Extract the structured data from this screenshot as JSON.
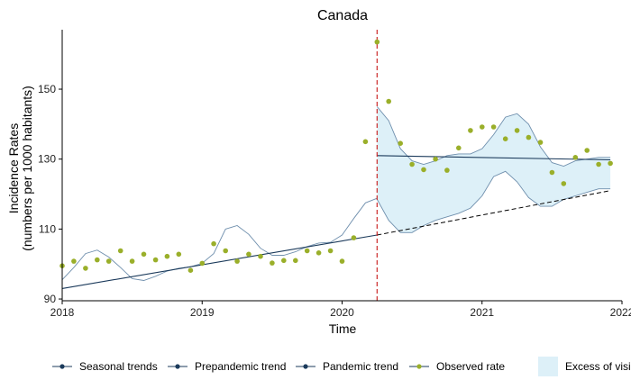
{
  "chart_data": {
    "type": "line",
    "title": "Canada",
    "xlabel": "Time",
    "ylabel": [
      "Incidence Rates",
      "(numbers per 1000 habitants)"
    ],
    "x_ticks": [
      "2018",
      "2019",
      "2020",
      "2021",
      "2022"
    ],
    "y_ticks": [
      90,
      110,
      130,
      150
    ],
    "xlim": [
      2018.0,
      2022.0
    ],
    "ylim": [
      89.5,
      167
    ],
    "grid": false,
    "legend_position": "bottom",
    "colors": {
      "observed": "#9aaf2a",
      "lines": "#1b3a5b",
      "band_fill": "#ddf0f8",
      "band_edge": "#6f8fad",
      "pandemic_marker": "#cc2a2a"
    },
    "pandemic_start": 2020.25,
    "legend": [
      "Seasonal trends",
      "Prepandemic trend",
      "Pandemic trend",
      "Observed rate",
      "Excess of visi"
    ],
    "series": [
      {
        "name": "Observed rate",
        "kind": "points",
        "x": [
          2018.0,
          2018.083,
          2018.167,
          2018.25,
          2018.333,
          2018.417,
          2018.5,
          2018.583,
          2018.667,
          2018.75,
          2018.833,
          2018.917,
          2019.0,
          2019.083,
          2019.167,
          2019.25,
          2019.333,
          2019.417,
          2019.5,
          2019.583,
          2019.667,
          2019.75,
          2019.833,
          2019.917,
          2020.0,
          2020.083,
          2020.167,
          2020.25,
          2020.333,
          2020.417,
          2020.5,
          2020.583,
          2020.667,
          2020.75,
          2020.833,
          2020.917,
          2021.0,
          2021.083,
          2021.167,
          2021.25,
          2021.333,
          2021.417,
          2021.5,
          2021.583,
          2021.667,
          2021.75,
          2021.833,
          2021.917
        ],
        "y": [
          99.5,
          100.8,
          98.8,
          101.2,
          100.8,
          103.8,
          100.8,
          102.8,
          101.2,
          102.2,
          102.8,
          98.2,
          100.2,
          105.8,
          103.8,
          100.8,
          102.8,
          102.2,
          100.3,
          101.0,
          101.0,
          103.8,
          103.2,
          103.8,
          100.8,
          107.5,
          135.0,
          163.5,
          146.5,
          134.5,
          128.5,
          127.0,
          130.0,
          126.8,
          133.2,
          138.2,
          139.2,
          139.2,
          135.8,
          138.2,
          136.2,
          134.8,
          126.2,
          123.0,
          130.5,
          132.5,
          128.5,
          128.8
        ]
      },
      {
        "name": "Seasonal trends",
        "kind": "line",
        "x": [
          2018.0,
          2018.083,
          2018.167,
          2018.25,
          2018.333,
          2018.417,
          2018.5,
          2018.583,
          2018.667,
          2018.75,
          2018.833,
          2018.917,
          2019.0,
          2019.083,
          2019.167,
          2019.25,
          2019.333,
          2019.417,
          2019.5,
          2019.583,
          2019.667,
          2019.75,
          2019.833,
          2019.917,
          2020.0,
          2020.083,
          2020.167,
          2020.25
        ],
        "y": [
          95.5,
          99.0,
          103.0,
          104.0,
          102.0,
          99.0,
          95.8,
          95.3,
          96.5,
          98.0,
          98.8,
          99.2,
          100.2,
          103.0,
          110.0,
          111.0,
          108.5,
          104.5,
          102.5,
          102.5,
          103.5,
          105.0,
          106.0,
          106.2,
          108.3,
          113.0,
          117.5,
          118.8
        ]
      },
      {
        "name": "Prepandemic trend",
        "kind": "line",
        "x": [
          2018.0,
          2020.25
        ],
        "y": [
          93.0,
          108.3
        ]
      },
      {
        "name": "Prepandemic trend (projection)",
        "kind": "dashed",
        "x": [
          2020.25,
          2021.917
        ],
        "y": [
          108.3,
          121.0
        ]
      },
      {
        "name": "Pandemic trend",
        "kind": "line",
        "x": [
          2020.25,
          2021.917
        ],
        "y": [
          131.0,
          129.8
        ]
      },
      {
        "name": "Excess of visits upper",
        "kind": "band_upper",
        "x": [
          2020.25,
          2020.333,
          2020.417,
          2020.5,
          2020.583,
          2020.667,
          2020.75,
          2020.833,
          2020.917,
          2021.0,
          2021.083,
          2021.167,
          2021.25,
          2021.333,
          2021.417,
          2021.5,
          2021.583,
          2021.667,
          2021.75,
          2021.833,
          2021.917
        ],
        "y": [
          145.0,
          141.0,
          133.0,
          129.5,
          128.5,
          129.5,
          131.0,
          131.5,
          131.5,
          133.0,
          137.0,
          142.0,
          143.0,
          140.0,
          133.5,
          129.0,
          128.0,
          129.5,
          130.0,
          130.5,
          130.5
        ]
      },
      {
        "name": "Excess of visits lower",
        "kind": "band_lower",
        "x": [
          2020.25,
          2020.333,
          2020.417,
          2020.5,
          2020.583,
          2020.667,
          2020.75,
          2020.833,
          2020.917,
          2021.0,
          2021.083,
          2021.167,
          2021.25,
          2021.333,
          2021.417,
          2021.5,
          2021.583,
          2021.667,
          2021.75,
          2021.833,
          2021.917
        ],
        "y": [
          118.5,
          112.5,
          109.0,
          109.0,
          111.0,
          112.5,
          113.5,
          114.5,
          116.0,
          119.5,
          125.0,
          126.5,
          123.5,
          119.0,
          116.5,
          116.5,
          118.5,
          119.5,
          120.5,
          121.5,
          121.5
        ]
      }
    ]
  }
}
